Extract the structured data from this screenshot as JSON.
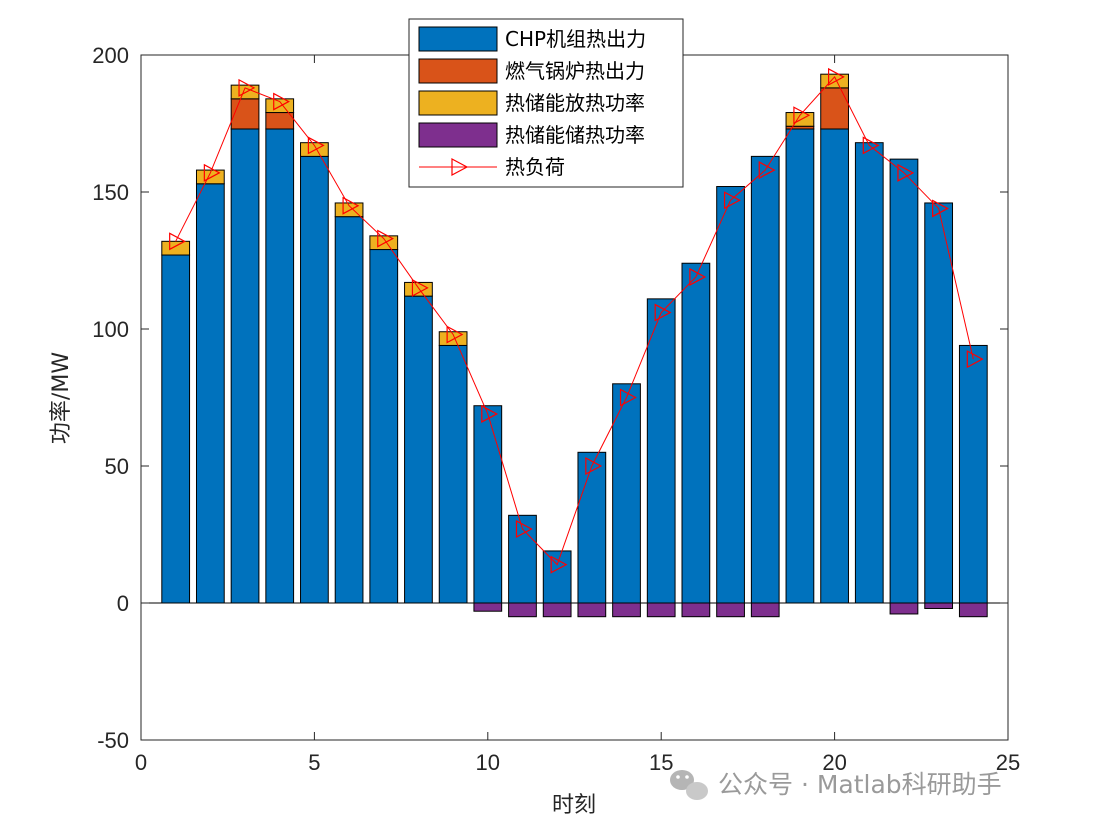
{
  "chart_data": {
    "type": "bar",
    "stacked": true,
    "x": [
      1,
      2,
      3,
      4,
      5,
      6,
      7,
      8,
      9,
      10,
      11,
      12,
      13,
      14,
      15,
      16,
      17,
      18,
      19,
      20,
      21,
      22,
      23,
      24
    ],
    "xlabel": "时刻",
    "ylabel": "功率/MW",
    "xlim": [
      0,
      25
    ],
    "ylim": [
      -50,
      200
    ],
    "xticks": [
      "0",
      "5",
      "10",
      "15",
      "20",
      "25"
    ],
    "yticks": [
      "-50",
      "0",
      "50",
      "100",
      "150",
      "200"
    ],
    "grid": false,
    "legend_position": "top-center",
    "series": [
      {
        "name": "CHP机组热出力",
        "color": "#0072BD",
        "values": [
          127,
          153,
          173,
          173,
          163,
          141,
          129,
          112,
          94,
          72,
          32,
          19,
          55,
          80,
          111,
          124,
          152,
          163,
          173,
          173,
          168,
          162,
          146,
          94
        ]
      },
      {
        "name": "燃气锅炉热出力",
        "color": "#D95319",
        "values": [
          0,
          0,
          11,
          6,
          0,
          0,
          0,
          0,
          0,
          0,
          0,
          0,
          0,
          0,
          0,
          0,
          0,
          0,
          1,
          15,
          0,
          0,
          0,
          0
        ]
      },
      {
        "name": "热储能放热功率",
        "color": "#EDB120",
        "values": [
          5,
          5,
          5,
          5,
          5,
          5,
          5,
          5,
          5,
          0,
          0,
          0,
          0,
          0,
          0,
          0,
          0,
          0,
          5,
          5,
          0,
          0,
          0,
          0
        ]
      },
      {
        "name": "热储能储热功率",
        "color": "#7E2F8E",
        "values": [
          0,
          0,
          0,
          0,
          0,
          0,
          0,
          0,
          0,
          -3,
          -5,
          -5,
          -5,
          -5,
          -5,
          -5,
          -5,
          -5,
          0,
          0,
          0,
          -4,
          -2,
          -5
        ]
      },
      {
        "name": "热负荷",
        "color": "#FF0000",
        "kind": "line-triangle-marker",
        "values": [
          132,
          157,
          188,
          183,
          167,
          145,
          133,
          115,
          98,
          69,
          27,
          14,
          50,
          75,
          106,
          119,
          147,
          158,
          178,
          192,
          167,
          157,
          144,
          89
        ]
      }
    ]
  },
  "watermark": {
    "text": "公众号 · Matlab科研助手",
    "icon": "wechat-icon"
  }
}
